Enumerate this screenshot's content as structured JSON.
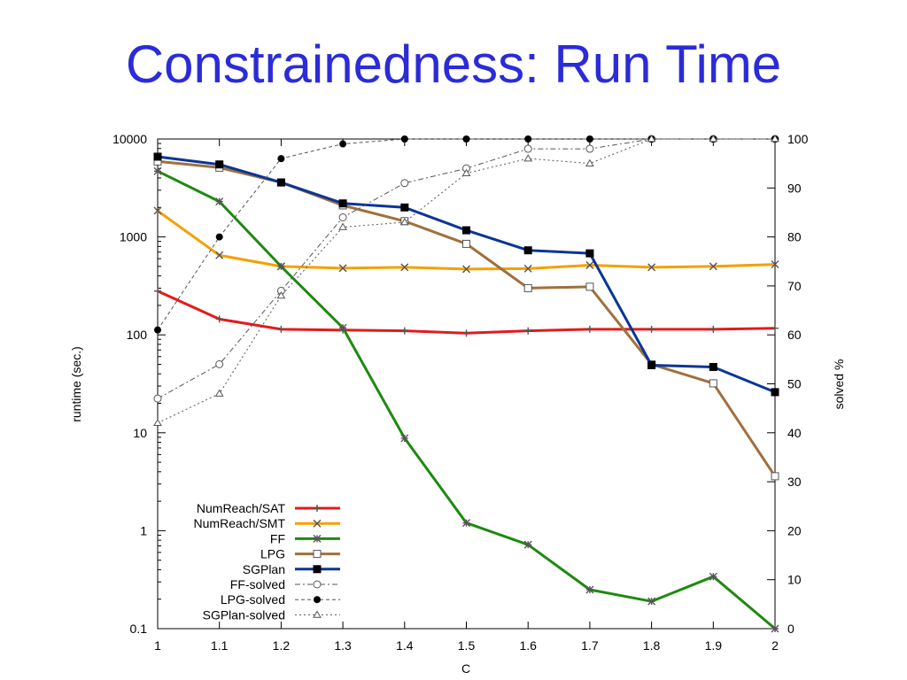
{
  "slide": {
    "title": "Constrainedness: Run Time"
  },
  "chart_data": {
    "type": "line",
    "xlabel": "C",
    "ylabel": "runtime (sec.)",
    "y2label": "solved %",
    "x": [
      1,
      1.1,
      1.2,
      1.3,
      1.4,
      1.5,
      1.6,
      1.7,
      1.8,
      1.9,
      2
    ],
    "x_ticks": [
      "1",
      "1.1",
      "1.2",
      "1.3",
      "1.4",
      "1.5",
      "1.6",
      "1.7",
      "1.8",
      "1.9",
      "2"
    ],
    "xlim": [
      1,
      2
    ],
    "y_scale": "log",
    "ylim": [
      0.1,
      10000
    ],
    "y_ticks": [
      {
        "value": 0.1,
        "label": "0.1"
      },
      {
        "value": 1,
        "label": "1"
      },
      {
        "value": 10,
        "label": "10"
      },
      {
        "value": 100,
        "label": "100"
      },
      {
        "value": 1000,
        "label": "1000"
      },
      {
        "value": 10000,
        "label": "10000"
      }
    ],
    "y2lim": [
      0,
      100
    ],
    "y2_ticks": [
      "0",
      "10",
      "20",
      "30",
      "40",
      "50",
      "60",
      "70",
      "80",
      "90",
      "100"
    ],
    "grid": false,
    "legend_position": "bottom-left",
    "series": [
      {
        "name": "NumReach/SAT",
        "axis": "left",
        "color": "#e41a1c",
        "style": "solid",
        "width": 3,
        "marker": "plus",
        "values": [
          280,
          145,
          114,
          112,
          110,
          104,
          110,
          114,
          114,
          114,
          117
        ]
      },
      {
        "name": "NumReach/SMT",
        "axis": "left",
        "color": "#f5a000",
        "style": "solid",
        "width": 3,
        "marker": "x",
        "values": [
          1850,
          650,
          500,
          480,
          490,
          470,
          475,
          515,
          490,
          500,
          525
        ]
      },
      {
        "name": "FF",
        "axis": "left",
        "color": "#1e8a10",
        "style": "solid",
        "width": 3,
        "marker": "asterisk",
        "values": [
          4700,
          2300,
          500,
          118,
          8.8,
          1.2,
          0.72,
          0.25,
          0.19,
          0.34,
          0.1
        ]
      },
      {
        "name": "LPG",
        "axis": "left",
        "color": "#a0703c",
        "style": "solid",
        "width": 3,
        "marker": "square-open",
        "values": [
          5900,
          5100,
          3600,
          2100,
          1450,
          850,
          300,
          310,
          50,
          32,
          3.6
        ]
      },
      {
        "name": "SGPlan",
        "axis": "left",
        "color": "#0a3597",
        "style": "solid",
        "width": 3,
        "marker": "square-filled",
        "values": [
          6600,
          5500,
          3600,
          2200,
          2000,
          1170,
          730,
          680,
          49,
          47,
          26
        ]
      },
      {
        "name": "FF-solved",
        "axis": "right",
        "color": "#555555",
        "style": "dashdot",
        "width": 1,
        "marker": "circle-open",
        "values": [
          47,
          54,
          69,
          84,
          91,
          94,
          98,
          98,
          100,
          100,
          100
        ]
      },
      {
        "name": "LPG-solved",
        "axis": "right",
        "color": "#555555",
        "style": "dashed",
        "width": 1,
        "marker": "circle-filled",
        "values": [
          61,
          80,
          96,
          99,
          100,
          100,
          100,
          100,
          100,
          100,
          100
        ]
      },
      {
        "name": "SGPlan-solved",
        "axis": "right",
        "color": "#555555",
        "style": "dotted",
        "width": 1,
        "marker": "triangle-open",
        "values": [
          42,
          48,
          68,
          82,
          83,
          93,
          96,
          95,
          100,
          100,
          100
        ]
      }
    ]
  }
}
